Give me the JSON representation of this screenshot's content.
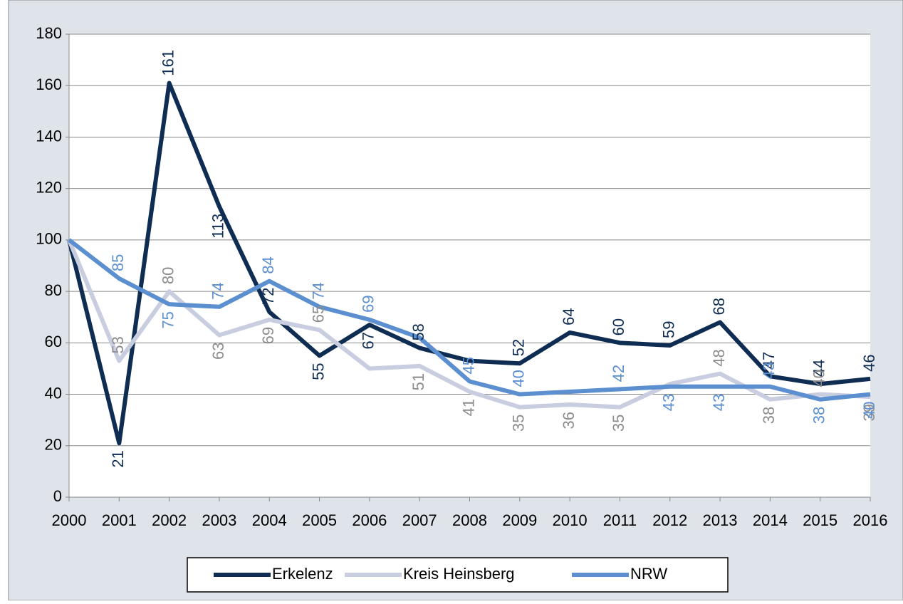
{
  "chart_data": {
    "type": "line",
    "categories": [
      "2000",
      "2001",
      "2002",
      "2003",
      "2004",
      "2005",
      "2006",
      "2007",
      "2008",
      "2009",
      "2010",
      "2011",
      "2012",
      "2013",
      "2014",
      "2015",
      "2016"
    ],
    "series": [
      {
        "name": "Erkelenz",
        "color": "#0f2d52",
        "label_color": "#0f2d52",
        "values": [
          100,
          21,
          161,
          113,
          72,
          55,
          67,
          58,
          53,
          52,
          64,
          60,
          59,
          68,
          47,
          44,
          46
        ],
        "value_labels": [
          null,
          "21",
          "161",
          "113",
          "72",
          "55",
          "67",
          "58",
          null,
          "52",
          "64",
          "60",
          "59",
          "68",
          "47",
          "44",
          "46"
        ]
      },
      {
        "name": "Kreis Heinsberg",
        "color": "#c9cde0",
        "label_color": "#8c8c8c",
        "values": [
          100,
          53,
          80,
          63,
          69,
          65,
          50,
          51,
          41,
          35,
          36,
          35,
          44,
          48,
          38,
          40,
          39
        ],
        "value_labels": [
          null,
          "53",
          "80",
          "63",
          "69",
          "65",
          null,
          "51",
          "41",
          "35",
          "36",
          "35",
          null,
          "48",
          "38",
          "40",
          "39"
        ]
      },
      {
        "name": "NRW",
        "color": "#5b8fd0",
        "label_color": "#5b8fd0",
        "values": [
          100,
          85,
          75,
          74,
          84,
          74,
          69,
          62,
          45,
          40,
          41,
          42,
          43,
          43,
          43,
          38,
          40
        ],
        "value_labels": [
          null,
          "85",
          "75",
          "74",
          "84",
          "74",
          "69",
          null,
          "45",
          "40",
          null,
          "42",
          "43",
          "43",
          "43",
          "38",
          "40"
        ]
      }
    ],
    "ylim": [
      0,
      180
    ],
    "yticks": [
      0,
      20,
      40,
      60,
      80,
      100,
      120,
      140,
      160,
      180
    ],
    "grid": true,
    "legend": "bottom"
  }
}
